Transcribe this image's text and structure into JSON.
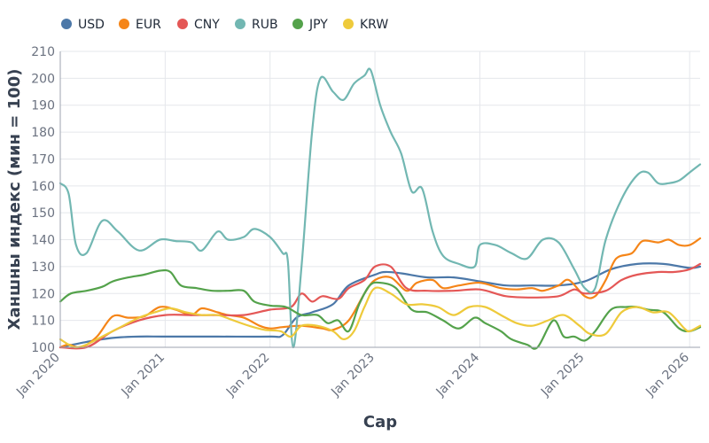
{
  "chart_data": {
    "type": "line",
    "title": "",
    "xlabel": "Сар",
    "ylabel": "Ханшны индекс (мин = 100)",
    "ylim": [
      100,
      210
    ],
    "yticks": [
      100,
      110,
      120,
      130,
      140,
      150,
      160,
      170,
      180,
      190,
      200,
      210
    ],
    "xlim": [
      2020.0,
      2026.1
    ],
    "xticks": [
      {
        "value": 2020,
        "label": "Jan 2020"
      },
      {
        "value": 2021,
        "label": "Jan 2021"
      },
      {
        "value": 2022,
        "label": "Jan 2022"
      },
      {
        "value": 2023,
        "label": "Jan 2023"
      },
      {
        "value": 2024,
        "label": "Jan 2024"
      },
      {
        "value": 2025,
        "label": "Jan 2025"
      },
      {
        "value": 2026,
        "label": "Jan 2026"
      }
    ],
    "grid": true,
    "legend_position": "top-left",
    "series": [
      {
        "name": "USD",
        "color": "#4c78a8",
        "points": [
          [
            2020.0,
            100
          ],
          [
            2020.25,
            102
          ],
          [
            2020.5,
            103.5
          ],
          [
            2020.75,
            104
          ],
          [
            2021.0,
            104
          ],
          [
            2021.5,
            104
          ],
          [
            2022.0,
            104
          ],
          [
            2022.12,
            104.5
          ],
          [
            2022.25,
            111
          ],
          [
            2022.4,
            113
          ],
          [
            2022.6,
            116
          ],
          [
            2022.75,
            123
          ],
          [
            2023.0,
            127
          ],
          [
            2023.1,
            128
          ],
          [
            2023.25,
            127.5
          ],
          [
            2023.5,
            126
          ],
          [
            2023.75,
            126
          ],
          [
            2024.0,
            124.5
          ],
          [
            2024.25,
            123
          ],
          [
            2024.5,
            123
          ],
          [
            2024.75,
            123
          ],
          [
            2025.0,
            124.5
          ],
          [
            2025.25,
            129
          ],
          [
            2025.5,
            131
          ],
          [
            2025.75,
            131
          ],
          [
            2026.0,
            129.5
          ],
          [
            2026.1,
            130
          ]
        ]
      },
      {
        "name": "EUR",
        "color": "#f58518",
        "points": [
          [
            2020.0,
            100
          ],
          [
            2020.08,
            101
          ],
          [
            2020.2,
            100
          ],
          [
            2020.35,
            104
          ],
          [
            2020.5,
            111.5
          ],
          [
            2020.65,
            111
          ],
          [
            2020.8,
            111.5
          ],
          [
            2020.95,
            115
          ],
          [
            2021.1,
            114
          ],
          [
            2021.25,
            112
          ],
          [
            2021.35,
            114.5
          ],
          [
            2021.5,
            113
          ],
          [
            2021.6,
            112
          ],
          [
            2021.75,
            111
          ],
          [
            2021.9,
            108
          ],
          [
            2022.0,
            107
          ],
          [
            2022.12,
            107.5
          ],
          [
            2022.3,
            108
          ],
          [
            2022.5,
            107
          ],
          [
            2022.6,
            106.5
          ],
          [
            2022.75,
            110
          ],
          [
            2022.9,
            120
          ],
          [
            2023.0,
            125
          ],
          [
            2023.15,
            126
          ],
          [
            2023.3,
            121
          ],
          [
            2023.4,
            124
          ],
          [
            2023.55,
            125
          ],
          [
            2023.65,
            122
          ],
          [
            2023.8,
            123
          ],
          [
            2024.0,
            124
          ],
          [
            2024.2,
            122
          ],
          [
            2024.35,
            121.5
          ],
          [
            2024.5,
            122
          ],
          [
            2024.6,
            121
          ],
          [
            2024.75,
            123
          ],
          [
            2024.85,
            125
          ],
          [
            2025.0,
            119
          ],
          [
            2025.1,
            119
          ],
          [
            2025.2,
            125
          ],
          [
            2025.3,
            133
          ],
          [
            2025.45,
            135
          ],
          [
            2025.55,
            139.5
          ],
          [
            2025.7,
            139
          ],
          [
            2025.8,
            140
          ],
          [
            2025.9,
            138
          ],
          [
            2026.0,
            138
          ],
          [
            2026.1,
            140.5
          ]
        ]
      },
      {
        "name": "CNY",
        "color": "#e45756",
        "points": [
          [
            2020.0,
            100
          ],
          [
            2020.25,
            100
          ],
          [
            2020.5,
            106
          ],
          [
            2020.75,
            110
          ],
          [
            2021.0,
            112
          ],
          [
            2021.25,
            112
          ],
          [
            2021.5,
            112
          ],
          [
            2021.75,
            112
          ],
          [
            2022.0,
            114
          ],
          [
            2022.2,
            115
          ],
          [
            2022.3,
            120
          ],
          [
            2022.4,
            117
          ],
          [
            2022.5,
            119
          ],
          [
            2022.65,
            118
          ],
          [
            2022.75,
            122
          ],
          [
            2022.9,
            125
          ],
          [
            2023.0,
            130
          ],
          [
            2023.15,
            130
          ],
          [
            2023.3,
            122
          ],
          [
            2023.5,
            121
          ],
          [
            2023.75,
            121
          ],
          [
            2024.0,
            121.5
          ],
          [
            2024.25,
            119
          ],
          [
            2024.5,
            118.5
          ],
          [
            2024.75,
            119
          ],
          [
            2024.9,
            121.5
          ],
          [
            2025.0,
            120
          ],
          [
            2025.2,
            121
          ],
          [
            2025.35,
            125
          ],
          [
            2025.5,
            127
          ],
          [
            2025.7,
            128
          ],
          [
            2025.85,
            128
          ],
          [
            2026.0,
            129
          ],
          [
            2026.1,
            131
          ]
        ]
      },
      {
        "name": "RUB",
        "color": "#72b7b2",
        "points": [
          [
            2020.0,
            161
          ],
          [
            2020.08,
            157
          ],
          [
            2020.15,
            138
          ],
          [
            2020.25,
            135
          ],
          [
            2020.4,
            147
          ],
          [
            2020.55,
            143
          ],
          [
            2020.75,
            136
          ],
          [
            2020.95,
            140
          ],
          [
            2021.1,
            139.5
          ],
          [
            2021.25,
            139
          ],
          [
            2021.35,
            136
          ],
          [
            2021.5,
            143
          ],
          [
            2021.6,
            140
          ],
          [
            2021.75,
            141
          ],
          [
            2021.85,
            144
          ],
          [
            2022.0,
            141
          ],
          [
            2022.12,
            135
          ],
          [
            2022.17,
            132
          ],
          [
            2022.22,
            100
          ],
          [
            2022.3,
            130
          ],
          [
            2022.4,
            180
          ],
          [
            2022.48,
            200
          ],
          [
            2022.6,
            195
          ],
          [
            2022.7,
            192
          ],
          [
            2022.8,
            198
          ],
          [
            2022.9,
            201
          ],
          [
            2022.96,
            203
          ],
          [
            2023.05,
            190
          ],
          [
            2023.15,
            180
          ],
          [
            2023.25,
            172
          ],
          [
            2023.35,
            158
          ],
          [
            2023.45,
            159
          ],
          [
            2023.55,
            143
          ],
          [
            2023.65,
            134
          ],
          [
            2023.8,
            131
          ],
          [
            2023.95,
            130
          ],
          [
            2024.0,
            138
          ],
          [
            2024.15,
            138
          ],
          [
            2024.3,
            135
          ],
          [
            2024.45,
            133
          ],
          [
            2024.6,
            140
          ],
          [
            2024.75,
            139
          ],
          [
            2024.9,
            129
          ],
          [
            2025.0,
            122
          ],
          [
            2025.1,
            122
          ],
          [
            2025.2,
            140
          ],
          [
            2025.35,
            155
          ],
          [
            2025.5,
            164
          ],
          [
            2025.6,
            165
          ],
          [
            2025.7,
            161
          ],
          [
            2025.8,
            161
          ],
          [
            2025.9,
            162
          ],
          [
            2026.0,
            165
          ],
          [
            2026.1,
            168
          ]
        ]
      },
      {
        "name": "JPY",
        "color": "#54a24b",
        "points": [
          [
            2020.0,
            117
          ],
          [
            2020.1,
            120
          ],
          [
            2020.25,
            121
          ],
          [
            2020.4,
            122.5
          ],
          [
            2020.5,
            124.5
          ],
          [
            2020.65,
            126
          ],
          [
            2020.8,
            127
          ],
          [
            2020.95,
            128.5
          ],
          [
            2021.05,
            128
          ],
          [
            2021.15,
            123
          ],
          [
            2021.3,
            122
          ],
          [
            2021.45,
            121
          ],
          [
            2021.6,
            121
          ],
          [
            2021.75,
            121
          ],
          [
            2021.85,
            117
          ],
          [
            2022.0,
            115.5
          ],
          [
            2022.15,
            115
          ],
          [
            2022.3,
            112
          ],
          [
            2022.45,
            112
          ],
          [
            2022.55,
            109
          ],
          [
            2022.65,
            110
          ],
          [
            2022.75,
            106
          ],
          [
            2022.85,
            116
          ],
          [
            2022.95,
            123
          ],
          [
            2023.05,
            124
          ],
          [
            2023.2,
            122
          ],
          [
            2023.35,
            114
          ],
          [
            2023.5,
            113
          ],
          [
            2023.65,
            110
          ],
          [
            2023.8,
            107
          ],
          [
            2023.95,
            111
          ],
          [
            2024.05,
            109
          ],
          [
            2024.2,
            106
          ],
          [
            2024.3,
            103
          ],
          [
            2024.45,
            101
          ],
          [
            2024.55,
            100
          ],
          [
            2024.7,
            110
          ],
          [
            2024.8,
            104
          ],
          [
            2024.9,
            104
          ],
          [
            2025.0,
            102.5
          ],
          [
            2025.1,
            106
          ],
          [
            2025.25,
            114
          ],
          [
            2025.4,
            115
          ],
          [
            2025.5,
            115
          ],
          [
            2025.6,
            114
          ],
          [
            2025.75,
            113
          ],
          [
            2025.9,
            107
          ],
          [
            2026.0,
            106
          ],
          [
            2026.1,
            107.5
          ]
        ]
      },
      {
        "name": "KRW",
        "color": "#eeca3b",
        "points": [
          [
            2020.0,
            103
          ],
          [
            2020.08,
            101
          ],
          [
            2020.15,
            100
          ],
          [
            2020.25,
            101
          ],
          [
            2020.4,
            104
          ],
          [
            2020.55,
            107
          ],
          [
            2020.75,
            111
          ],
          [
            2020.9,
            113
          ],
          [
            2021.05,
            114.5
          ],
          [
            2021.2,
            113
          ],
          [
            2021.35,
            112
          ],
          [
            2021.5,
            112
          ],
          [
            2021.65,
            110
          ],
          [
            2021.8,
            108
          ],
          [
            2021.95,
            106.5
          ],
          [
            2022.1,
            106
          ],
          [
            2022.2,
            104
          ],
          [
            2022.3,
            108
          ],
          [
            2022.45,
            108
          ],
          [
            2022.6,
            106
          ],
          [
            2022.7,
            103
          ],
          [
            2022.8,
            106
          ],
          [
            2022.9,
            115
          ],
          [
            2023.0,
            122
          ],
          [
            2023.15,
            120
          ],
          [
            2023.3,
            116
          ],
          [
            2023.45,
            116
          ],
          [
            2023.6,
            115
          ],
          [
            2023.75,
            112
          ],
          [
            2023.9,
            115
          ],
          [
            2024.05,
            115
          ],
          [
            2024.2,
            112
          ],
          [
            2024.35,
            109
          ],
          [
            2024.5,
            108
          ],
          [
            2024.65,
            110
          ],
          [
            2024.8,
            112
          ],
          [
            2024.95,
            108
          ],
          [
            2025.05,
            105
          ],
          [
            2025.2,
            105
          ],
          [
            2025.35,
            113
          ],
          [
            2025.5,
            115
          ],
          [
            2025.65,
            113
          ],
          [
            2025.8,
            113
          ],
          [
            2025.95,
            107
          ],
          [
            2026.0,
            106
          ],
          [
            2026.1,
            108
          ]
        ]
      }
    ]
  }
}
